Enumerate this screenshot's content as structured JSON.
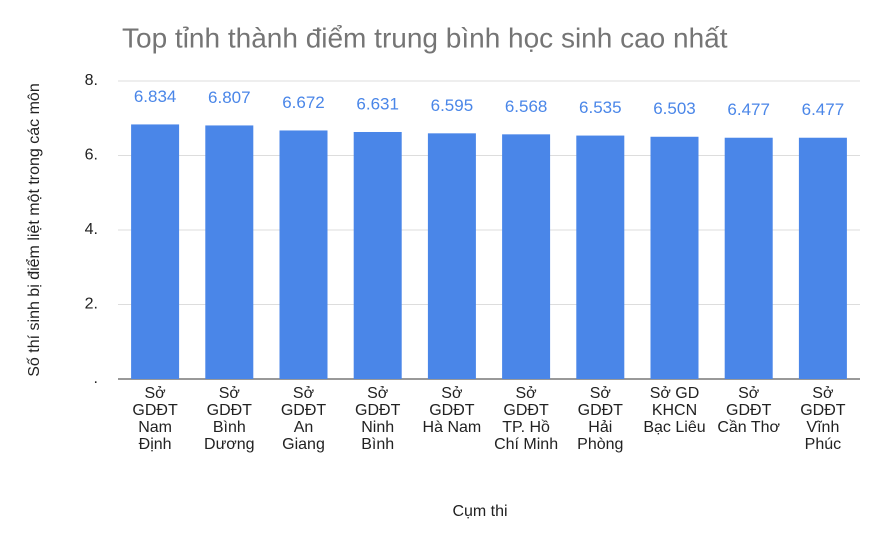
{
  "chart_data": {
    "type": "bar",
    "title": "Top tỉnh thành điểm trung bình học sinh cao nhất",
    "x_label": "Cụm thi",
    "y_label": "Số thí sinh bị điểm liệt một trong các môn",
    "categories": [
      "Sở GDĐT Nam Định",
      "Sở GDĐT Bình Dương",
      "Sở GDĐT An Giang",
      "Sở GDĐT Ninh Bình",
      "Sở GDĐT Hà Nam",
      "Sở GDĐT TP. Hồ Chí Minh",
      "Sở GDĐT Hải Phòng",
      "Sở GD KHCN Bạc Liêu",
      "Sở GDĐT Cần Thơ",
      "Sở GDĐT Vĩnh Phúc"
    ],
    "values": [
      6.834,
      6.807,
      6.672,
      6.631,
      6.595,
      6.568,
      6.535,
      6.503,
      6.477,
      6.477
    ],
    "color": "#4a86e8",
    "ylim": [
      0,
      8
    ],
    "yticks": [
      {
        "value": 0,
        "label": "."
      },
      {
        "value": 2,
        "label": "2."
      },
      {
        "value": 4,
        "label": "4."
      },
      {
        "value": 6,
        "label": "6."
      },
      {
        "value": 8,
        "label": "8."
      }
    ],
    "grid": true
  }
}
